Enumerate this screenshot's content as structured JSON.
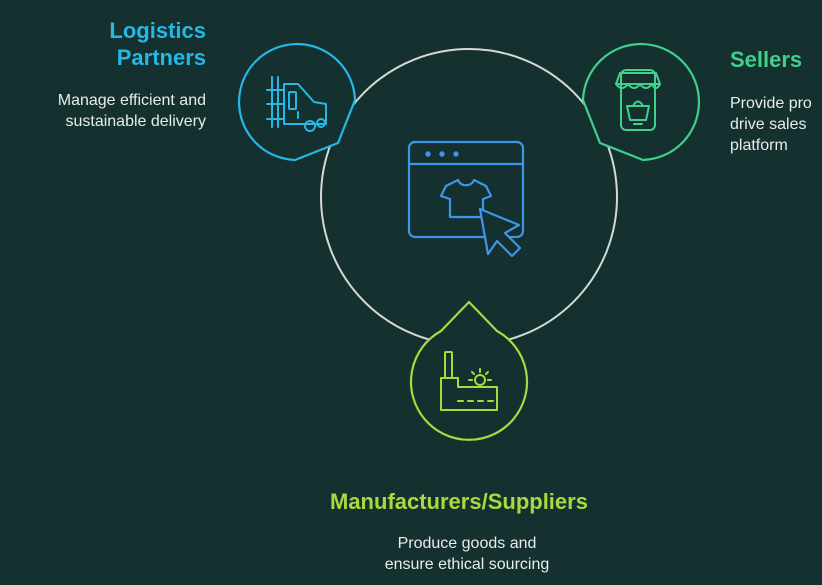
{
  "colors": {
    "background": "#143130",
    "ring": "#d5d9d6",
    "logistics": "#25b7e6",
    "sellers": "#3fd08a",
    "manufacturers": "#a9d93f",
    "center_icon": "#3f95e8",
    "description_text": "#e8ecea"
  },
  "center": {
    "icon": "browser-window-shirt-cursor-icon"
  },
  "nodes": {
    "logistics": {
      "title_lines": [
        "Logistics",
        "Partners"
      ],
      "description_lines": [
        "Manage efficient and",
        "sustainable delivery"
      ],
      "icon": "delivery-truck-icon"
    },
    "sellers": {
      "title": "Sellers",
      "description_lines": [
        "Provide pro",
        "drive sales",
        "platform"
      ],
      "icon": "mobile-shop-icon"
    },
    "manufacturers": {
      "title": "Manufacturers/Suppliers",
      "description_lines": [
        "Produce goods and",
        "ensure ethical sourcing"
      ],
      "icon": "factory-icon"
    }
  }
}
